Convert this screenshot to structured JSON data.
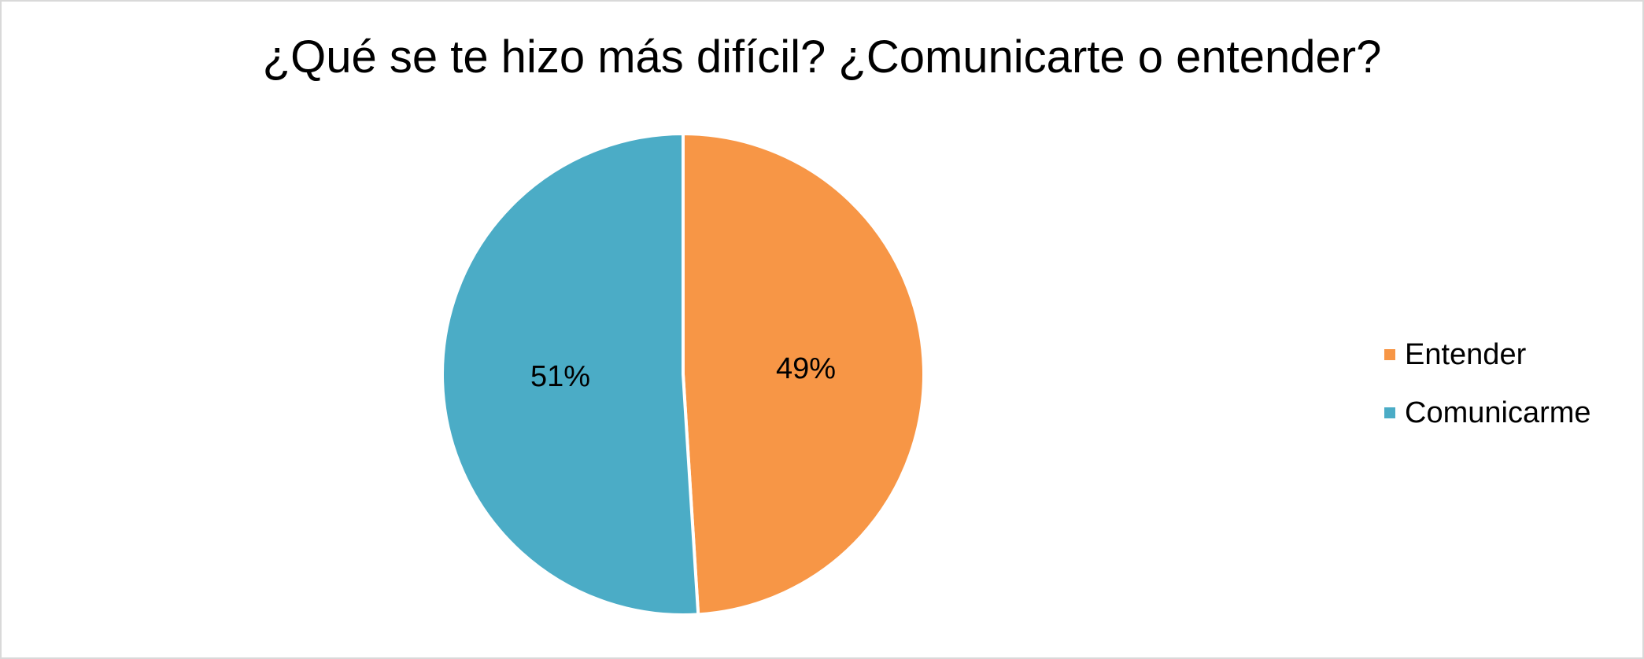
{
  "chart_data": {
    "type": "pie",
    "title": "¿Qué se te hizo más difícil? ¿Comunicarte o entender?",
    "categories": [
      "Entender",
      "Comunicarme"
    ],
    "values": [
      49,
      51
    ],
    "data_labels": [
      "49%",
      "51%"
    ],
    "colors": [
      "#F79646",
      "#4BACC6"
    ],
    "legend": {
      "position": "right",
      "entries": [
        "Entender",
        "Comunicarme"
      ]
    }
  }
}
